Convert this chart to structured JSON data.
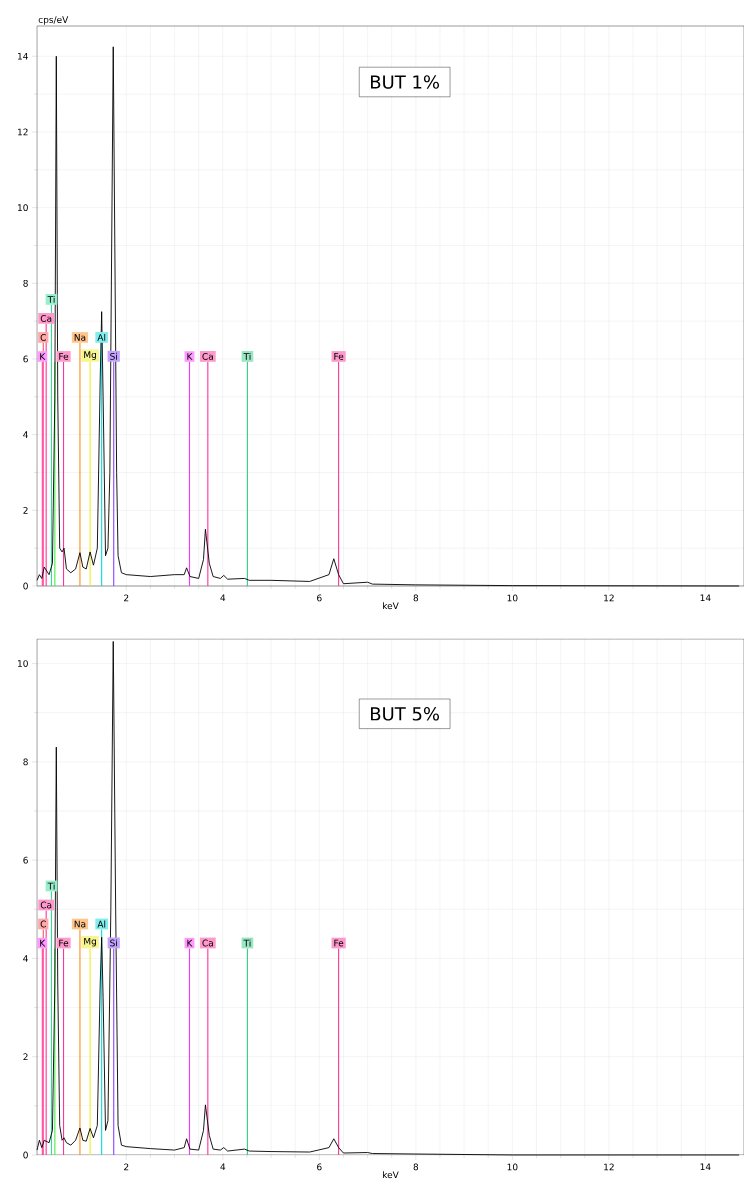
{
  "chart_data": [
    {
      "type": "line",
      "ylabel": "cps/eV",
      "xlabel": "keV",
      "annotations": [
        "BUT 1%"
      ],
      "grid": true,
      "marker": "none",
      "x": [
        0.15,
        0.2,
        0.25,
        0.3,
        0.4,
        0.47,
        0.52,
        0.55,
        0.58,
        0.62,
        0.67,
        0.71,
        0.76,
        0.85,
        0.95,
        1.04,
        1.1,
        1.17,
        1.25,
        1.32,
        1.4,
        1.46,
        1.49,
        1.52,
        1.57,
        1.62,
        1.66,
        1.73,
        1.8,
        1.83,
        1.9,
        2.0,
        2.5,
        3.0,
        3.2,
        3.25,
        3.32,
        3.5,
        3.6,
        3.64,
        3.72,
        3.8,
        3.95,
        4.02,
        4.1,
        4.45,
        4.55,
        5.0,
        5.8,
        6.2,
        6.3,
        6.4,
        6.5,
        7.0,
        7.1,
        8.0,
        9.0,
        10.0,
        14.7
      ],
      "series": [
        {
          "color": "#000000",
          "values": [
            0.15,
            0.3,
            0.2,
            0.5,
            0.3,
            0.6,
            5.0,
            14.0,
            5.0,
            1.0,
            0.9,
            1.0,
            0.45,
            0.35,
            0.45,
            0.88,
            0.5,
            0.45,
            0.9,
            0.55,
            1.0,
            5.5,
            7.25,
            5.0,
            0.8,
            1.0,
            3.0,
            14.25,
            3.0,
            0.8,
            0.35,
            0.3,
            0.25,
            0.3,
            0.3,
            0.48,
            0.25,
            0.2,
            0.7,
            1.5,
            0.6,
            0.25,
            0.2,
            0.28,
            0.18,
            0.2,
            0.15,
            0.15,
            0.12,
            0.3,
            0.72,
            0.3,
            0.06,
            0.1,
            0.05,
            0.03,
            0.02,
            0.01,
            0.0
          ]
        }
      ],
      "xlim": [
        0.15,
        14.8
      ],
      "ylim": [
        0,
        14.8
      ],
      "xticks": [
        2,
        4,
        6,
        8,
        10,
        12,
        14
      ],
      "yticks": [
        0,
        2,
        4,
        6,
        8,
        10,
        12,
        14
      ],
      "ref_lines": [
        {
          "axis": "x",
          "value": 0.26,
          "label": "K",
          "color": "#ff33ff"
        },
        {
          "axis": "x",
          "value": 0.28,
          "label": "C",
          "color": "#ff5555"
        },
        {
          "axis": "x",
          "value": 0.34,
          "label": "Ca",
          "color": "#ff3399"
        },
        {
          "axis": "x",
          "value": 0.45,
          "label": "Ti",
          "color": "#33dd99"
        },
        {
          "axis": "x",
          "value": 0.52,
          "color": "#44ee44"
        },
        {
          "axis": "x",
          "value": 0.7,
          "label": "Fe",
          "color": "#ff3399"
        },
        {
          "axis": "x",
          "value": 1.04,
          "label": "Na",
          "color": "#ff8c1a"
        },
        {
          "axis": "x",
          "value": 1.25,
          "label": "Mg",
          "color": "#eeee22"
        },
        {
          "axis": "x",
          "value": 1.49,
          "label": "Al",
          "color": "#00dddd"
        },
        {
          "axis": "x",
          "value": 1.74,
          "label": "Si",
          "color": "#8844ff"
        },
        {
          "axis": "x",
          "value": 3.31,
          "label": "K",
          "color": "#ff33ff"
        },
        {
          "axis": "x",
          "value": 3.69,
          "label": "Ca",
          "color": "#ff3399"
        },
        {
          "axis": "x",
          "value": 4.51,
          "label": "Ti",
          "color": "#33cc88"
        },
        {
          "axis": "x",
          "value": 6.4,
          "label": "Fe",
          "color": "#ff3399"
        }
      ]
    },
    {
      "type": "line",
      "xlabel": "keV",
      "annotations": [
        "BUT 5%"
      ],
      "grid": true,
      "marker": "none",
      "x": [
        0.15,
        0.2,
        0.25,
        0.3,
        0.4,
        0.47,
        0.52,
        0.55,
        0.58,
        0.62,
        0.67,
        0.71,
        0.76,
        0.85,
        0.95,
        1.04,
        1.1,
        1.17,
        1.25,
        1.32,
        1.4,
        1.46,
        1.49,
        1.52,
        1.57,
        1.62,
        1.68,
        1.73,
        1.78,
        1.83,
        1.9,
        2.0,
        2.5,
        3.0,
        3.2,
        3.25,
        3.32,
        3.5,
        3.6,
        3.64,
        3.72,
        3.8,
        3.95,
        4.02,
        4.1,
        4.45,
        4.55,
        5.0,
        5.8,
        6.2,
        6.3,
        6.4,
        6.5,
        7.0,
        7.1,
        8.0,
        9.0,
        10.0,
        14.7
      ],
      "series": [
        {
          "color": "#000000",
          "values": [
            0.1,
            0.3,
            0.15,
            0.3,
            0.25,
            0.5,
            3.5,
            8.3,
            3.5,
            0.6,
            0.3,
            0.35,
            0.25,
            0.2,
            0.3,
            0.55,
            0.3,
            0.28,
            0.54,
            0.35,
            0.6,
            3.5,
            4.43,
            3.2,
            0.5,
            0.7,
            5.0,
            10.45,
            5.0,
            0.6,
            0.2,
            0.17,
            0.13,
            0.1,
            0.15,
            0.33,
            0.12,
            0.1,
            0.5,
            1.02,
            0.4,
            0.12,
            0.1,
            0.15,
            0.08,
            0.12,
            0.08,
            0.07,
            0.06,
            0.15,
            0.33,
            0.15,
            0.04,
            0.05,
            0.03,
            0.02,
            0.01,
            0.0,
            0.0
          ]
        }
      ],
      "xlim": [
        0.15,
        14.8
      ],
      "ylim": [
        0,
        10.5
      ],
      "xticks": [
        2,
        4,
        6,
        8,
        10,
        12,
        14
      ],
      "yticks": [
        0,
        2,
        4,
        6,
        8,
        10
      ],
      "ref_lines": [
        {
          "axis": "x",
          "value": 0.26,
          "label": "K",
          "color": "#ff33ff"
        },
        {
          "axis": "x",
          "value": 0.28,
          "label": "C",
          "color": "#ff5555"
        },
        {
          "axis": "x",
          "value": 0.34,
          "label": "Ca",
          "color": "#ff3399"
        },
        {
          "axis": "x",
          "value": 0.45,
          "label": "Ti",
          "color": "#33dd99"
        },
        {
          "axis": "x",
          "value": 0.52,
          "color": "#44ee44"
        },
        {
          "axis": "x",
          "value": 0.7,
          "label": "Fe",
          "color": "#ff3399"
        },
        {
          "axis": "x",
          "value": 1.04,
          "label": "Na",
          "color": "#ff8c1a"
        },
        {
          "axis": "x",
          "value": 1.25,
          "label": "Mg",
          "color": "#eeee22"
        },
        {
          "axis": "x",
          "value": 1.49,
          "label": "Al",
          "color": "#00dddd"
        },
        {
          "axis": "x",
          "value": 1.74,
          "label": "Si",
          "color": "#8844ff"
        },
        {
          "axis": "x",
          "value": 3.31,
          "label": "K",
          "color": "#ff33ff"
        },
        {
          "axis": "x",
          "value": 3.69,
          "label": "Ca",
          "color": "#ff3399"
        },
        {
          "axis": "x",
          "value": 4.51,
          "label": "Ti",
          "color": "#33cc88"
        },
        {
          "axis": "x",
          "value": 6.4,
          "label": "Fe",
          "color": "#ff3399"
        }
      ]
    }
  ]
}
